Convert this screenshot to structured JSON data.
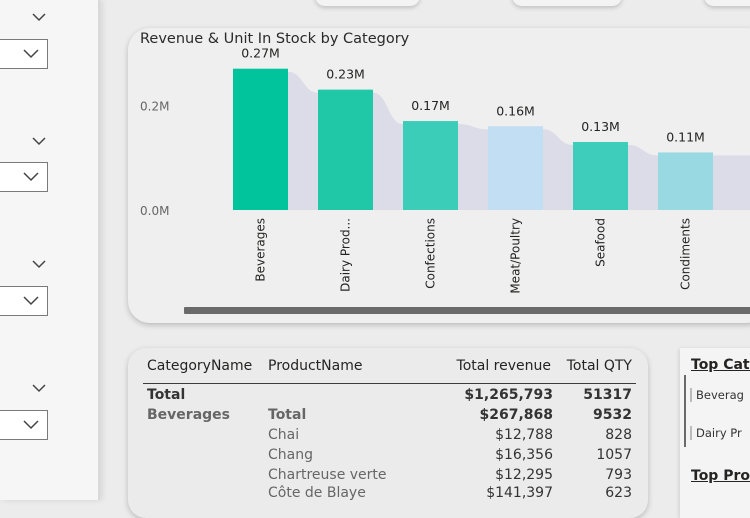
{
  "filter_pane": {
    "slicers": [
      {
        "name": "slicer-1"
      },
      {
        "name": "slicer-2"
      },
      {
        "name": "slicer-3"
      },
      {
        "name": "slicer-4"
      }
    ],
    "icons": {
      "dropdown": "chevron-down-icon"
    }
  },
  "chart": {
    "title": "Revenue & Unit In Stock by Category"
  },
  "chart_data": {
    "type": "bar",
    "title": "Revenue & Unit In Stock by Category",
    "xlabel": "",
    "ylabel": "",
    "categories": [
      "Beverages",
      "Dairy Prod...",
      "Confections",
      "Meat/Poultry",
      "Seafood",
      "Condiments"
    ],
    "values": [
      0.27,
      0.23,
      0.17,
      0.16,
      0.13,
      0.11
    ],
    "data_labels": [
      "0.27M",
      "0.23M",
      "0.17M",
      "0.16M",
      "0.13M",
      "0.11M"
    ],
    "bar_colors": [
      "#01c39c",
      "#21c8a8",
      "#3ccdb8",
      "#c1def2",
      "#3ecdbb",
      "#99dae2"
    ],
    "y_ticks": [
      0,
      0.2
    ],
    "y_tick_labels": [
      "0.0M",
      "0.2M"
    ],
    "ylim": [
      0,
      0.3
    ],
    "units": "M",
    "grid": false,
    "background_area": true,
    "area_color": "#dcdce8"
  },
  "table": {
    "headers": {
      "category": "CategoryName",
      "product": "ProductName",
      "revenue": "Total revenue",
      "qty": "Total QTY"
    },
    "total_row": {
      "label": "Total",
      "revenue": "$1,265,793",
      "qty": "51317"
    },
    "group": {
      "category": "Beverages",
      "label": "Total",
      "revenue": "$267,868",
      "qty": "9532"
    },
    "rows": [
      {
        "product": "Chai",
        "revenue": "$12,788",
        "qty": "828"
      },
      {
        "product": "Chang",
        "revenue": "$16,356",
        "qty": "1057"
      },
      {
        "product": "Chartreuse verte",
        "revenue": "$12,295",
        "qty": "793"
      },
      {
        "product": "Côte de Blaye",
        "revenue": "$141,397",
        "qty": "623"
      }
    ]
  },
  "right_panel": {
    "heading1": "Top Cate",
    "items": [
      "Beverag",
      "Dairy Pr"
    ],
    "heading2": "Top Prod"
  },
  "colors": {
    "accent": "#01c39c",
    "scroll": "#6a6a6a"
  }
}
